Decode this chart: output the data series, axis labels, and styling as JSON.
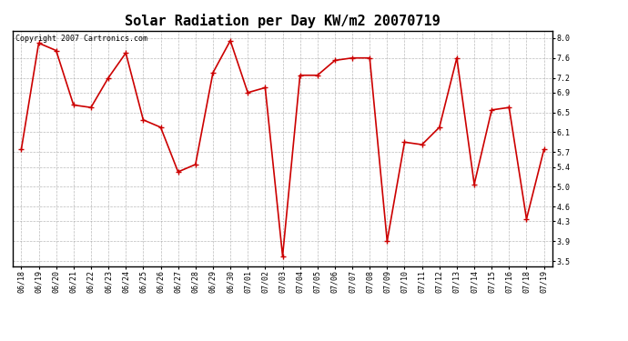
{
  "title": "Solar Radiation per Day KW/m2 20070719",
  "copyright": "Copyright 2007 Cartronics.com",
  "dates": [
    "06/18",
    "06/19",
    "06/20",
    "06/21",
    "06/22",
    "06/23",
    "06/24",
    "06/25",
    "06/26",
    "06/27",
    "06/28",
    "06/29",
    "06/30",
    "07/01",
    "07/02",
    "07/03",
    "07/04",
    "07/05",
    "07/06",
    "07/07",
    "07/08",
    "07/09",
    "07/10",
    "07/11",
    "07/12",
    "07/13",
    "07/14",
    "07/15",
    "07/16",
    "07/18",
    "07/19"
  ],
  "values": [
    5.75,
    7.9,
    7.75,
    6.65,
    6.6,
    7.2,
    7.7,
    6.35,
    6.2,
    5.3,
    5.45,
    7.3,
    7.95,
    6.9,
    7.0,
    3.6,
    7.25,
    7.25,
    7.55,
    7.6,
    7.6,
    3.9,
    5.9,
    5.85,
    6.2,
    7.6,
    5.05,
    6.55,
    6.6,
    4.35,
    5.75
  ],
  "line_color": "#cc0000",
  "marker": "+",
  "marker_size": 4,
  "marker_linewidth": 1.0,
  "line_width": 1.2,
  "ylim": [
    3.4,
    8.15
  ],
  "yticks": [
    3.5,
    3.9,
    4.3,
    4.6,
    5.0,
    5.4,
    5.7,
    6.1,
    6.5,
    6.9,
    7.2,
    7.6,
    8.0
  ],
  "bg_color": "#ffffff",
  "plot_bg_color": "#ffffff",
  "grid_color": "#aaaaaa",
  "title_fontsize": 11,
  "copyright_fontsize": 6,
  "tick_fontsize": 6,
  "border_color": "#000000"
}
